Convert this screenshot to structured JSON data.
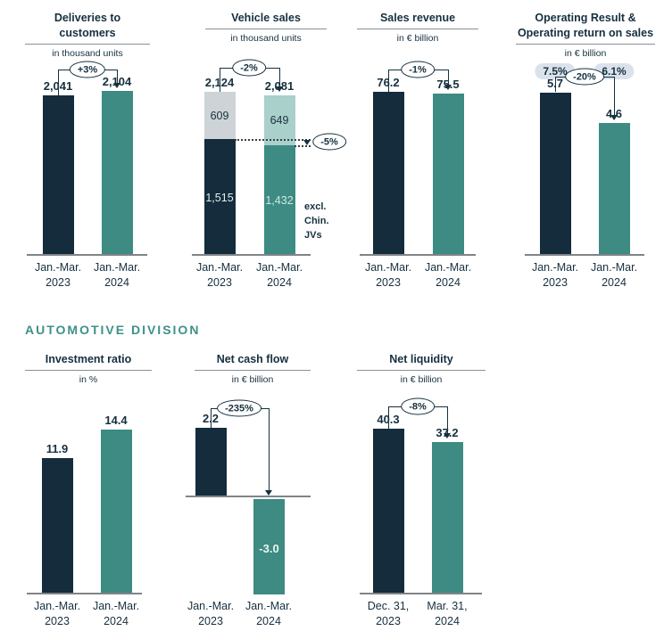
{
  "section_header": "AUTOMOTIVE DIVISION",
  "colors": {
    "navy_bar": "#142c3c",
    "teal_bar": "#3d8b82",
    "gray_segment": "#cdd3d6",
    "light_teal_segment": "#a9d0cb",
    "pill_background": "#dbe2eb",
    "section_header_teal": "#3d9187",
    "axis_gray": "#7f8488"
  },
  "chart_data": [
    {
      "type": "bar",
      "title": "Deliveries to customers",
      "unit_label": "in thousand units",
      "change_badge": "+3%",
      "categories": [
        "Jan.-Mar. 2023",
        "Jan.-Mar. 2024"
      ],
      "cat_line1": [
        "Jan.-Mar.",
        "Jan.-Mar."
      ],
      "cat_line2": [
        "2023",
        "2024"
      ],
      "values": [
        2041,
        2104
      ],
      "value_labels": [
        "2,041",
        "2,104"
      ]
    },
    {
      "type": "stacked-bar",
      "title": "Vehicle sales",
      "unit_label": "in thousand units",
      "change_badge": "-2%",
      "secondary_badge": "-5%",
      "note_lines": [
        "excl.",
        "Chin.",
        "JVs"
      ],
      "categories": [
        "Jan.-Mar. 2023",
        "Jan.-Mar. 2024"
      ],
      "cat_line1": [
        "Jan.-Mar.",
        "Jan.-Mar."
      ],
      "cat_line2": [
        "2023",
        "2024"
      ],
      "totals": [
        2124,
        2081
      ],
      "total_labels": [
        "2,124",
        "2,081"
      ],
      "series": [
        {
          "name": "Chinese JVs",
          "values": [
            609,
            649
          ],
          "labels": [
            "609",
            "649"
          ]
        },
        {
          "name": "excl. Chinese JVs",
          "values": [
            1515,
            1432
          ],
          "labels": [
            "1,515",
            "1,432"
          ]
        }
      ]
    },
    {
      "type": "bar",
      "title": "Sales revenue",
      "unit_label": "in € billion",
      "change_badge": "-1%",
      "categories": [
        "Jan.-Mar. 2023",
        "Jan.-Mar. 2024"
      ],
      "cat_line1": [
        "Jan.-Mar.",
        "Jan.-Mar."
      ],
      "cat_line2": [
        "2023",
        "2024"
      ],
      "values": [
        76.2,
        75.5
      ],
      "value_labels": [
        "76.2",
        "75.5"
      ]
    },
    {
      "type": "bar",
      "title": "Operating Result & Operating return on sales",
      "unit_label": "in € billion",
      "change_badge": "-20%",
      "return_on_sales_labels": [
        "7.5%",
        "6.1%"
      ],
      "categories": [
        "Jan.-Mar. 2023",
        "Jan.-Mar. 2024"
      ],
      "cat_line1": [
        "Jan.-Mar.",
        "Jan.-Mar."
      ],
      "cat_line2": [
        "2023",
        "2024"
      ],
      "values": [
        5.7,
        4.6
      ],
      "value_labels": [
        "5.7",
        "4.6"
      ]
    },
    {
      "type": "bar",
      "title": "Investment ratio",
      "unit_label": "in %",
      "categories": [
        "Jan.-Mar. 2023",
        "Jan.-Mar. 2024"
      ],
      "cat_line1": [
        "Jan.-Mar.",
        "Jan.-Mar."
      ],
      "cat_line2": [
        "2023",
        "2024"
      ],
      "values": [
        11.9,
        14.4
      ],
      "value_labels": [
        "11.9",
        "14.4"
      ]
    },
    {
      "type": "bar",
      "title": "Net cash flow",
      "unit_label": "in € billion",
      "change_badge": "-235%",
      "categories": [
        "Jan.-Mar. 2023",
        "Jan.-Mar. 2024"
      ],
      "cat_line1": [
        "Jan.-Mar.",
        "Jan.-Mar."
      ],
      "cat_line2": [
        "2023",
        "2024"
      ],
      "values": [
        2.2,
        -3.0
      ],
      "value_labels": [
        "2.2",
        "-3.0"
      ]
    },
    {
      "type": "bar",
      "title": "Net liquidity",
      "unit_label": "in € billion",
      "change_badge": "-8%",
      "categories": [
        "Dec. 31, 2023",
        "Mar. 31, 2024"
      ],
      "cat_line1": [
        "Dec. 31,",
        "Mar. 31,"
      ],
      "cat_line2": [
        "2023",
        "2024"
      ],
      "values": [
        40.3,
        37.2
      ],
      "value_labels": [
        "40.3",
        "37.2"
      ]
    }
  ]
}
